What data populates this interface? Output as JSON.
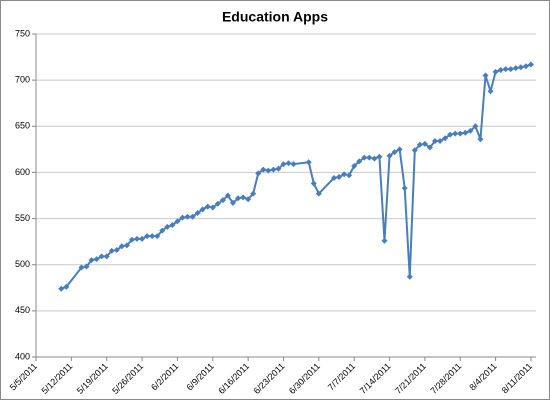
{
  "chart_data": {
    "type": "line",
    "title": "Education Apps",
    "color": "#4a7ebb",
    "grid": true,
    "x": [
      "5/10/2011",
      "5/11/2011",
      "5/14/2011",
      "5/15/2011",
      "5/16/2011",
      "5/17/2011",
      "5/18/2011",
      "5/19/2011",
      "5/20/2011",
      "5/21/2011",
      "5/22/2011",
      "5/23/2011",
      "5/24/2011",
      "5/25/2011",
      "5/26/2011",
      "5/27/2011",
      "5/28/2011",
      "5/29/2011",
      "5/30/2011",
      "5/31/2011",
      "6/1/2011",
      "6/2/2011",
      "6/3/2011",
      "6/4/2011",
      "6/5/2011",
      "6/6/2011",
      "6/7/2011",
      "6/8/2011",
      "6/9/2011",
      "6/10/2011",
      "6/11/2011",
      "6/12/2011",
      "6/13/2011",
      "6/14/2011",
      "6/15/2011",
      "6/16/2011",
      "6/17/2011",
      "6/18/2011",
      "6/19/2011",
      "6/20/2011",
      "6/21/2011",
      "6/22/2011",
      "6/23/2011",
      "6/24/2011",
      "6/25/2011",
      "6/28/2011",
      "6/29/2011",
      "6/30/2011",
      "7/3/2011",
      "7/4/2011",
      "7/5/2011",
      "7/6/2011",
      "7/7/2011",
      "7/8/2011",
      "7/9/2011",
      "7/10/2011",
      "7/11/2011",
      "7/12/2011",
      "7/13/2011",
      "7/14/2011",
      "7/15/2011",
      "7/16/2011",
      "7/17/2011",
      "7/18/2011",
      "7/19/2011",
      "7/20/2011",
      "7/21/2011",
      "7/22/2011",
      "7/23/2011",
      "7/24/2011",
      "7/25/2011",
      "7/26/2011",
      "7/27/2011",
      "7/28/2011",
      "7/29/2011",
      "7/30/2011",
      "7/31/2011",
      "8/1/2011",
      "8/2/2011",
      "8/3/2011",
      "8/4/2011",
      "8/5/2011",
      "8/6/2011",
      "8/7/2011",
      "8/8/2011",
      "8/9/2011",
      "8/10/2011",
      "8/11/2011"
    ],
    "values": [
      474,
      476,
      497,
      498,
      505,
      506,
      509,
      509,
      515,
      516,
      520,
      521,
      527,
      528,
      528,
      531,
      531,
      531,
      537,
      541,
      543,
      547,
      551,
      552,
      552,
      556,
      560,
      563,
      562,
      566,
      570,
      575,
      567,
      572,
      573,
      571,
      577,
      599,
      603,
      602,
      603,
      604,
      609,
      610,
      609,
      611,
      588,
      577,
      594,
      595,
      598,
      597,
      607,
      612,
      616,
      616,
      615,
      617,
      526,
      618,
      622,
      625,
      583,
      487,
      624,
      630,
      631,
      627,
      634,
      634,
      637,
      641,
      642,
      642,
      643,
      645,
      650,
      636,
      705,
      688,
      709,
      711,
      712,
      712,
      713,
      714,
      715,
      717
    ],
    "xlim": [
      "5/5/2011",
      "8/12/2011"
    ],
    "xticks": [
      "5/5/2011",
      "5/12/2011",
      "5/19/2011",
      "5/26/2011",
      "6/2/2011",
      "6/9/2011",
      "6/16/2011",
      "6/23/2011",
      "6/30/2011",
      "7/7/2011",
      "7/14/2011",
      "7/21/2011",
      "7/28/2011",
      "8/4/2011",
      "8/11/2011"
    ],
    "ylim": [
      400,
      750
    ],
    "yticks": [
      400,
      450,
      500,
      550,
      600,
      650,
      700,
      750
    ]
  }
}
